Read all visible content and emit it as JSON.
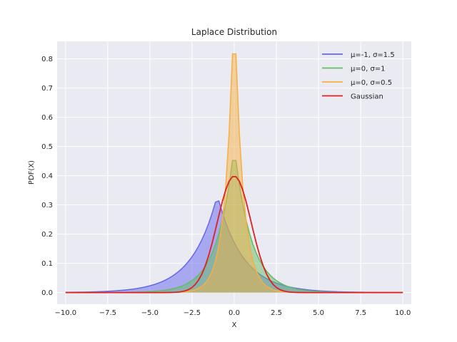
{
  "chart_data": {
    "type": "area",
    "title": "Laplace Distribution",
    "xlabel": "X",
    "ylabel": "PDF(X)",
    "xlim": [
      -10.5,
      10.5
    ],
    "ylim": [
      -0.04,
      0.86
    ],
    "xticks": [
      -10,
      -7.5,
      -5,
      -2.5,
      0,
      2.5,
      5,
      7.5,
      10
    ],
    "xtick_labels": [
      "−10.0",
      "−7.5",
      "−5.0",
      "−2.5",
      "0.0",
      "2.5",
      "5.0",
      "7.5",
      "10.0"
    ],
    "yticks": [
      0,
      0.1,
      0.2,
      0.3,
      0.4,
      0.5,
      0.6,
      0.7,
      0.8
    ],
    "ytick_labels": [
      "0.0",
      "0.1",
      "0.2",
      "0.3",
      "0.4",
      "0.5",
      "0.6",
      "0.7",
      "0.8"
    ],
    "grid": true,
    "legend_position": "top-right",
    "x_range": [
      -10,
      10
    ],
    "n_points": 100,
    "series": [
      {
        "name": "μ=-1, σ=1.5",
        "distribution": "laplace",
        "mu": -1,
        "b": 1.5,
        "color": "#6666ee",
        "filled": true
      },
      {
        "name": "μ=0, σ=1",
        "distribution": "laplace",
        "mu": 0,
        "b": 1,
        "color": "#66bb66",
        "filled": true
      },
      {
        "name": "μ=0, σ=0.5",
        "distribution": "laplace",
        "mu": 0,
        "b": 0.5,
        "color": "#f5b041",
        "filled": true
      },
      {
        "name": "Gaussian",
        "distribution": "normal",
        "mu": 0,
        "sigma": 1,
        "color": "#e02020",
        "filled": false
      }
    ]
  }
}
